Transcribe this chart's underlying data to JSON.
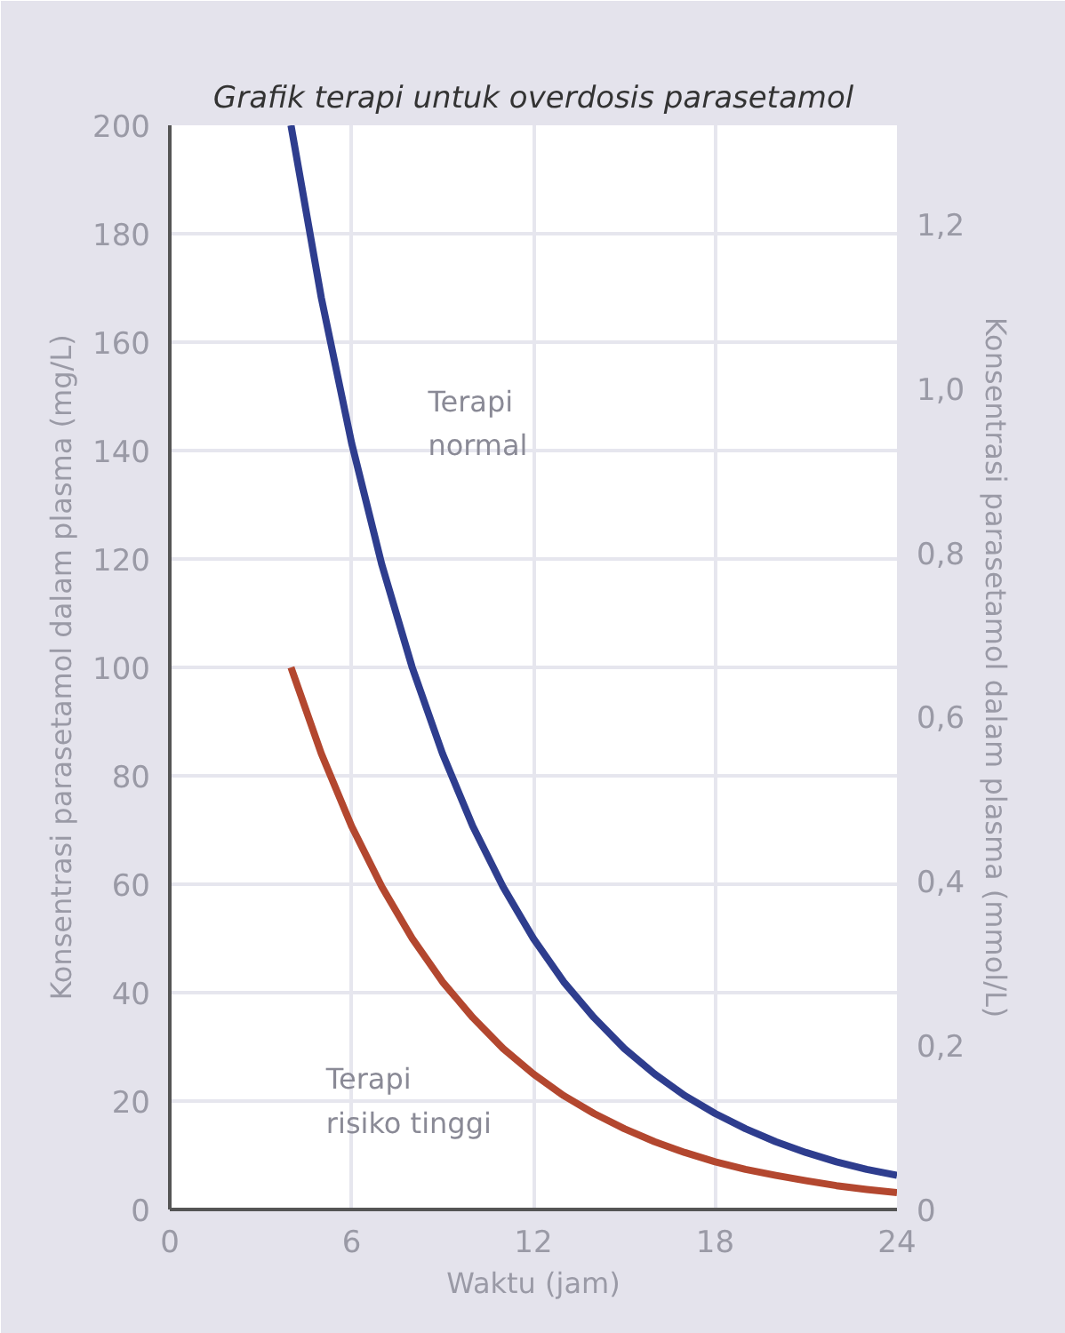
{
  "chart_data": {
    "type": "line",
    "title": "Grafik terapi untuk overdosis parasetamol",
    "xlabel": "Waktu (jam)",
    "ylabel": "Konsentrasi parasetamol dalam plasma (mg/L)",
    "y2label": "Konsentrasi parasetamol dalam plasma (mmol/L)",
    "x": [
      4,
      5,
      6,
      7,
      8,
      9,
      10,
      11,
      12,
      13,
      14,
      15,
      16,
      17,
      18,
      19,
      20,
      21,
      22,
      23,
      24
    ],
    "series": [
      {
        "color": "#2e3d8e",
        "values": [
          200,
          168.2,
          141.4,
          118.9,
          100,
          84.1,
          70.7,
          59.5,
          50,
          42,
          35.4,
          29.7,
          25,
          21,
          17.7,
          14.9,
          12.5,
          10.5,
          8.8,
          7.4,
          6.3
        ]
      },
      {
        "color": "#b3472f",
        "values": [
          100,
          84.1,
          70.7,
          59.5,
          50,
          42,
          35.4,
          29.7,
          25,
          21,
          17.7,
          14.9,
          12.5,
          10.5,
          8.8,
          7.4,
          6.3,
          5.3,
          4.4,
          3.7,
          3.1
        ]
      }
    ],
    "xlim": [
      0,
      24
    ],
    "xticks": [
      0,
      6,
      12,
      18,
      24
    ],
    "ylim": [
      0,
      200
    ],
    "yticks": [
      0,
      20,
      40,
      60,
      80,
      100,
      120,
      140,
      160,
      180,
      200
    ],
    "y2lim": [
      0,
      1.32
    ],
    "y2ticks": [
      0,
      {
        "value": 0.2,
        "label": "0,2"
      },
      {
        "value": 0.4,
        "label": "0,4"
      },
      {
        "value": 0.6,
        "label": "0,6"
      },
      {
        "value": 0.8,
        "label": "0,8"
      },
      {
        "value": 1.0,
        "label": "1,0"
      },
      {
        "value": 1.2,
        "label": "1,2"
      }
    ],
    "annotations": [
      "Terapi\nnormal",
      "Terapi\nrisiko tinggi"
    ],
    "grid": true,
    "marker": "none",
    "line_style": "solid"
  }
}
